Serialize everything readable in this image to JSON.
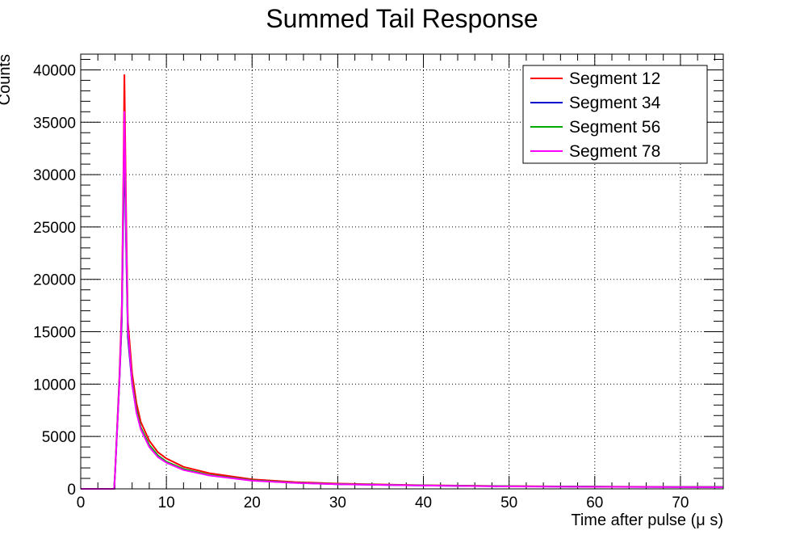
{
  "chart_data": {
    "type": "line",
    "title": "Summed Tail Response",
    "xlabel": "Time after pulse (μ s)",
    "ylabel": "Counts",
    "xlim": [
      0,
      75
    ],
    "ylim": [
      0,
      41500
    ],
    "x_ticks": [
      0,
      10,
      20,
      30,
      40,
      50,
      60,
      70
    ],
    "y_ticks": [
      0,
      5000,
      10000,
      15000,
      20000,
      25000,
      30000,
      35000,
      40000
    ],
    "grid": true,
    "legend_position": "top-right",
    "series": [
      {
        "name": "Segment 12",
        "color": "#ff0000",
        "x": [
          0,
          3.9,
          4.0,
          4.5,
          4.8,
          5.0,
          5.1,
          5.3,
          5.5,
          6.0,
          6.5,
          7,
          8,
          9,
          10,
          12,
          15,
          20,
          25,
          30,
          40,
          50,
          60,
          70,
          75
        ],
        "y": [
          0,
          0,
          1500,
          10500,
          17500,
          31500,
          39500,
          26000,
          16000,
          11000,
          8200,
          6400,
          4600,
          3500,
          2900,
          2100,
          1500,
          900,
          650,
          500,
          350,
          260,
          210,
          190,
          180
        ]
      },
      {
        "name": "Segment 34",
        "color": "#0000cc",
        "x": [
          0,
          3.9,
          4.0,
          4.5,
          4.8,
          5.0,
          5.1,
          5.3,
          5.5,
          6.0,
          6.5,
          7,
          8,
          9,
          10,
          12,
          15,
          20,
          25,
          30,
          40,
          50,
          60,
          70,
          75
        ],
        "y": [
          0,
          0,
          1400,
          10000,
          16000,
          28000,
          33000,
          23000,
          14500,
          10000,
          7400,
          5800,
          4100,
          3100,
          2550,
          1850,
          1300,
          800,
          580,
          450,
          320,
          240,
          200,
          180,
          170
        ]
      },
      {
        "name": "Segment 56",
        "color": "#00aa00",
        "x": [
          0,
          3.9,
          4.0,
          4.5,
          4.8,
          5.0,
          5.1,
          5.3,
          5.5,
          6.0,
          6.5,
          7,
          8,
          9,
          10,
          12,
          15,
          20,
          25,
          30,
          40,
          50,
          60,
          70,
          75
        ],
        "y": [
          0,
          0,
          1400,
          10200,
          16500,
          29000,
          34000,
          24000,
          15000,
          10300,
          7600,
          5900,
          4200,
          3200,
          2600,
          1900,
          1330,
          820,
          590,
          460,
          330,
          245,
          205,
          185,
          175
        ]
      },
      {
        "name": "Segment 78",
        "color": "#ff00ff",
        "x": [
          0,
          3.9,
          4.0,
          4.5,
          4.8,
          5.0,
          5.1,
          5.3,
          5.5,
          6.0,
          6.5,
          7,
          8,
          9,
          10,
          12,
          15,
          20,
          25,
          30,
          40,
          50,
          60,
          70,
          75
        ],
        "y": [
          0,
          0,
          1400,
          10000,
          17000,
          30000,
          36000,
          24500,
          15200,
          10100,
          7300,
          5700,
          4000,
          3050,
          2500,
          1800,
          1280,
          780,
          570,
          440,
          315,
          235,
          195,
          175,
          165
        ]
      }
    ]
  }
}
